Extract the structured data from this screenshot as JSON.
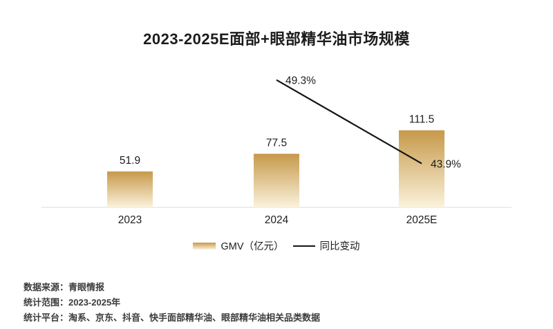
{
  "title": "2023-2025E面部+眼部精华油市场规模",
  "chart_data": {
    "type": "bar",
    "title": "2023-2025E面部+眼部精华油市场规模",
    "categories": [
      "2023",
      "2024",
      "2025E"
    ],
    "series": [
      {
        "name": "GMV（亿元）",
        "type": "bar",
        "values": [
          51.9,
          77.5,
          111.5
        ],
        "labels": [
          "51.9",
          "77.5",
          "111.5"
        ]
      },
      {
        "name": "同比变动",
        "type": "line",
        "values": [
          null,
          49.3,
          43.9
        ],
        "labels": [
          "",
          "49.3%",
          "43.9%"
        ]
      }
    ],
    "xlabel": "",
    "ylabel": "GMV（亿元）",
    "y2label": "同比变动",
    "ylim": [
      0,
      130
    ],
    "y2lim_percent": [
      40,
      52
    ],
    "grid": false,
    "legend_position": "bottom"
  },
  "legend": {
    "gmv_label": "GMV（亿元）",
    "yoy_label": "同比变动"
  },
  "colors": {
    "bar_gradient_top": "#c6994a",
    "bar_gradient_bottom": "#fbf2dc",
    "line": "#141414",
    "baseline": "#e7e7e7",
    "text": "#1d1d1d",
    "footer_text": "#3b3b3b"
  },
  "footer": {
    "lines": [
      "数据来源：青眼情报",
      "统计范围：2023-2025年",
      "统计平台：淘系、京东、抖音、快手面部精华油、眼部精华油相关品类数据"
    ]
  }
}
